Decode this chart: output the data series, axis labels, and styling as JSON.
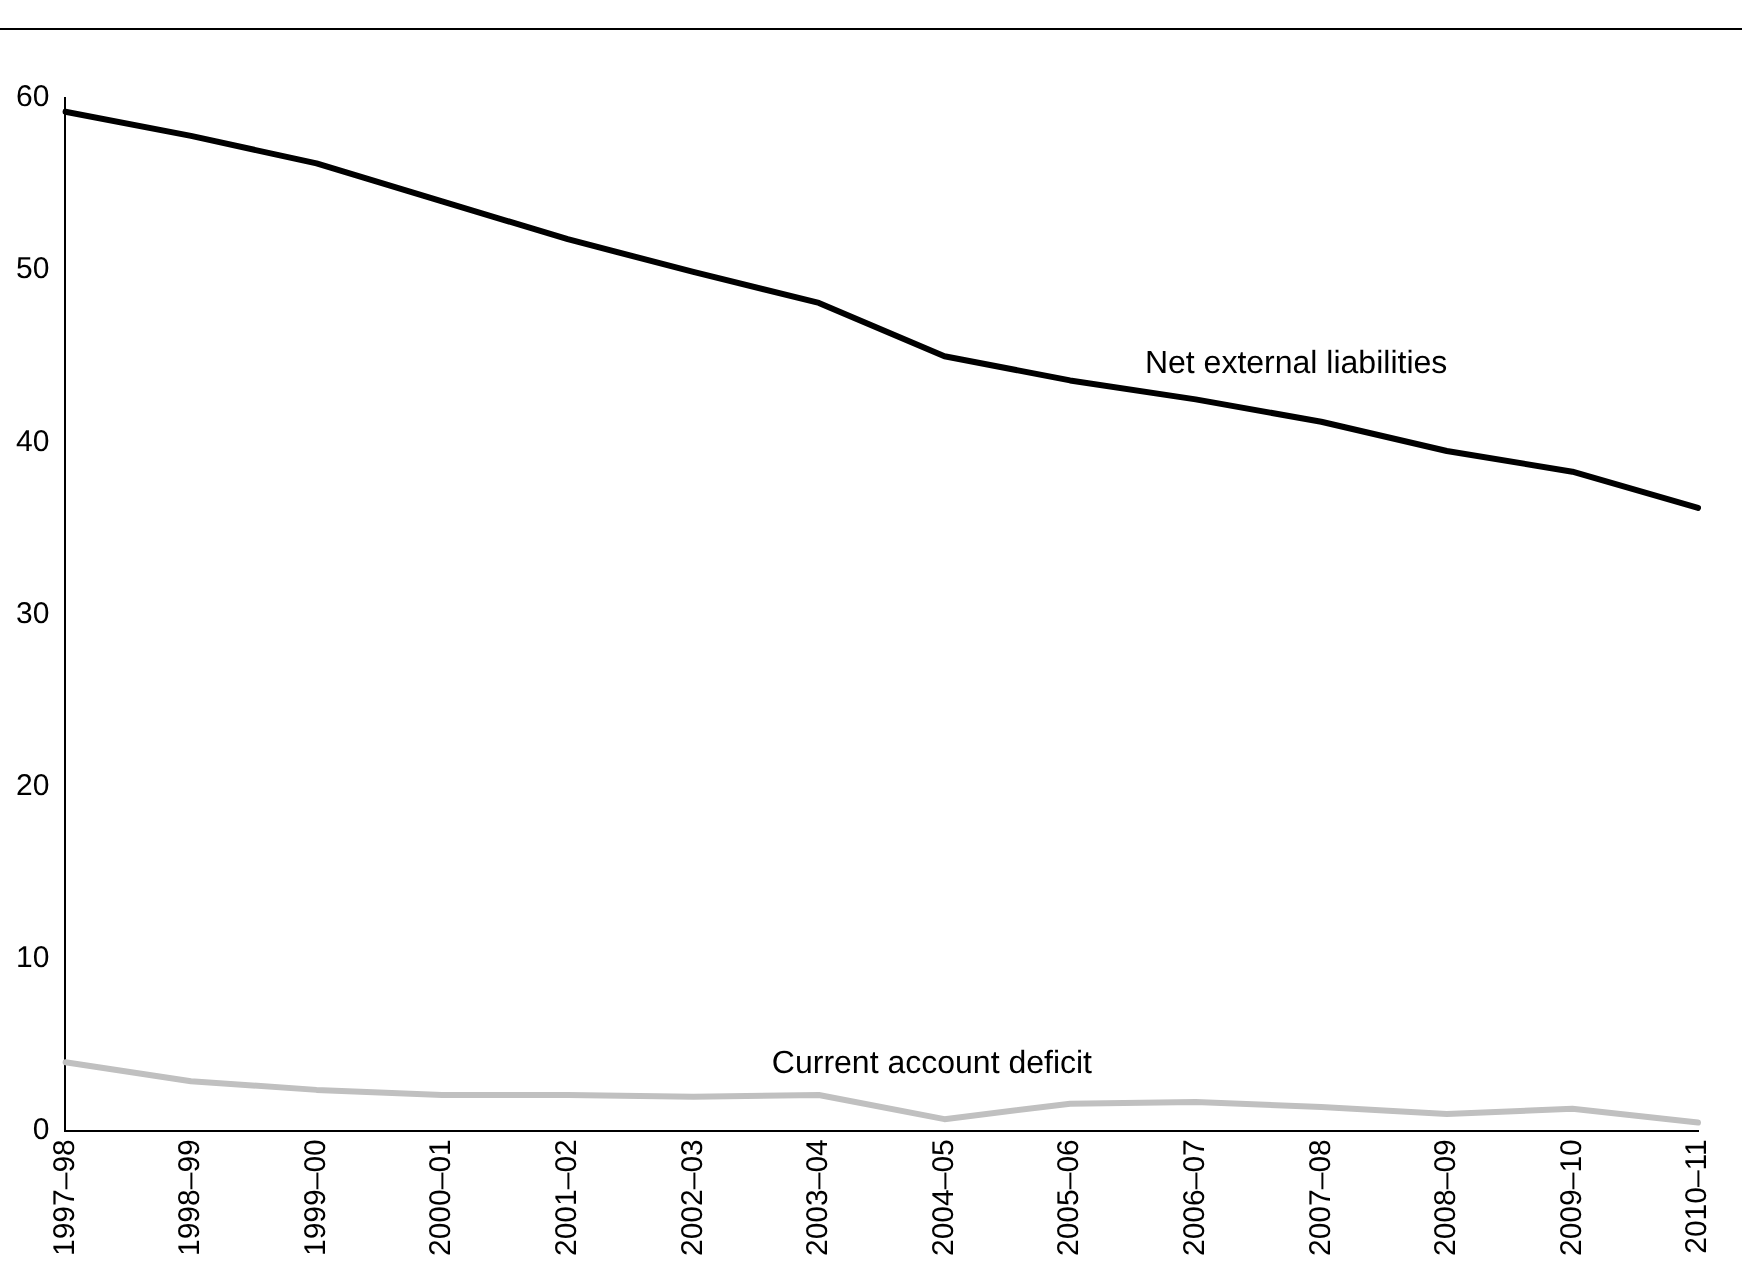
{
  "chart_data": {
    "type": "line",
    "categories": [
      "1997–98",
      "1998–99",
      "1999–00",
      "2000–01",
      "2001–02",
      "2002–03",
      "2003–04",
      "2004–05",
      "2005–06",
      "2006–07",
      "2007–08",
      "2008–09",
      "2009–10",
      "2010–11"
    ],
    "series": [
      {
        "name": "Net external liabilities",
        "color": "#000000",
        "values": [
          59.2,
          57.8,
          56.2,
          54.0,
          51.8,
          49.9,
          48.1,
          45.0,
          43.6,
          42.5,
          41.2,
          39.5,
          38.3,
          36.2
        ]
      },
      {
        "name": "Current account deficit",
        "color": "#c0c0c0",
        "values": [
          4.0,
          2.9,
          2.4,
          2.1,
          2.1,
          2.0,
          2.1,
          0.7,
          1.6,
          1.7,
          1.4,
          1.0,
          1.3,
          0.5
        ]
      }
    ],
    "ylim": [
      0,
      60
    ],
    "yticks": [
      0,
      10,
      20,
      30,
      40,
      50,
      60
    ],
    "grid": false,
    "legend": false,
    "marker": "none",
    "line_style": "solid"
  }
}
